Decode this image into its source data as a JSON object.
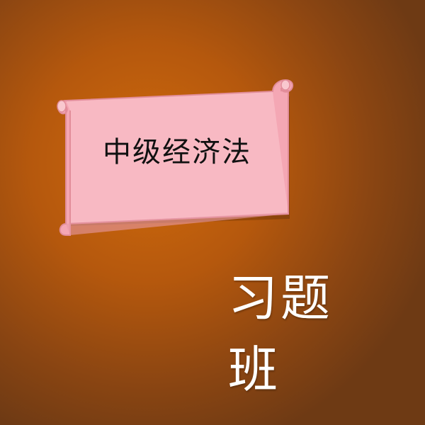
{
  "banner": {
    "title": "中级经济法",
    "fill_color": "#f8b9c3",
    "edge_color": "#e28d9a"
  },
  "subtitle": "习题班",
  "background": {
    "center_color": "#cf6a0c",
    "edge_color": "#6e3a14"
  }
}
